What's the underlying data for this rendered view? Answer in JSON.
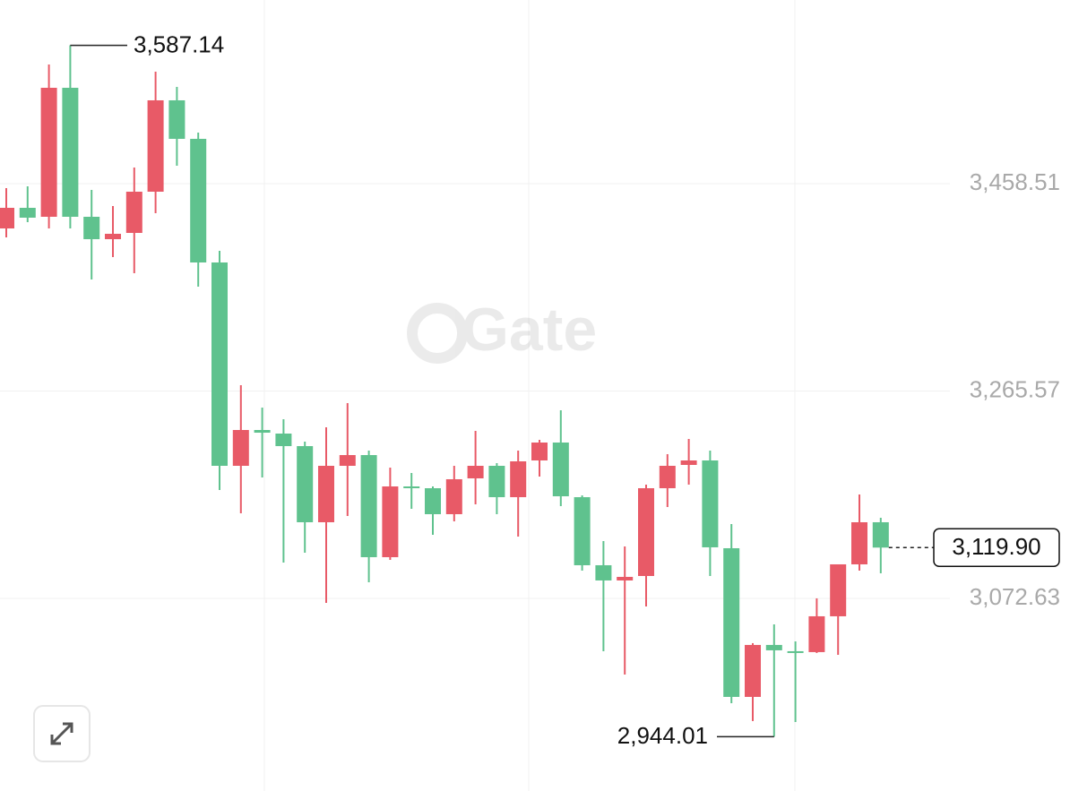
{
  "chart_data": {
    "type": "candlestick",
    "watermark": "Gate",
    "up_color": "#e85a67",
    "down_color": "#5fc28e",
    "ylim": [
      2893.44,
      3629.36
    ],
    "yticks": [
      {
        "value": 3072.63,
        "label": "3,072.63"
      },
      {
        "value": 3265.57,
        "label": "3,265.57"
      },
      {
        "value": 3458.51,
        "label": "3,458.51"
      }
    ],
    "grid": true,
    "open": [
      3416.83,
      3436.0,
      3427.67,
      3547.68,
      3427.67,
      3406.84,
      3412.67,
      3451.01,
      3536.02,
      3500.18,
      3385.17,
      3195.98,
      3229.31,
      3225.98,
      3214.31,
      3143.48,
      3195.98,
      3205.98,
      3110.98,
      3176.81,
      3175.14,
      3150.98,
      3184.31,
      3195.98,
      3166.81,
      3200.98,
      3217.64,
      3166.81,
      3103.48,
      3089.32,
      3093.48,
      3175.14,
      3196.81,
      3200.98,
      3119.31,
      2980.99,
      3029.33,
      3023.49,
      3022.66,
      3055.99,
      3104.31,
      3143.48
    ],
    "high": [
      3454.34,
      3456.01,
      3569.35,
      3587.14,
      3452.67,
      3437.67,
      3473.51,
      3562.69,
      3548.52,
      3506.01,
      3396.0,
      3270.98,
      3250.15,
      3239.31,
      3218.48,
      3231.81,
      3254.31,
      3210.14,
      3194.31,
      3189.31,
      3176.81,
      3195.98,
      3228.47,
      3198.48,
      3210.14,
      3220.14,
      3247.65,
      3168.48,
      3125.98,
      3120.98,
      3178.48,
      3206.81,
      3220.98,
      3210.14,
      3141.81,
      3030.99,
      3048.49,
      3032.66,
      3072.65,
      3104.31,
      3169.31,
      3147.64
    ],
    "low": [
      3408.5,
      3422.67,
      3416.83,
      3416.83,
      3369.33,
      3390.17,
      3375.17,
      3431.0,
      3475.17,
      3362.66,
      3173.48,
      3151.81,
      3185.14,
      3105.98,
      3115.15,
      3068.49,
      3149.31,
      3087.65,
      3108.48,
      3155.98,
      3131.81,
      3144.31,
      3160.14,
      3150.98,
      3130.15,
      3185.98,
      3158.48,
      3098.48,
      3023.49,
      3001.83,
      3065.15,
      3157.64,
      3178.48,
      3093.48,
      2975.16,
      2958.49,
      2944.01,
      2957.65,
      3021.83,
      3020.16,
      3098.48,
      3095.98
    ],
    "close": [
      3436.0,
      3426.84,
      3547.68,
      3427.67,
      3406.84,
      3411.84,
      3451.01,
      3536.02,
      3500.18,
      3385.17,
      3195.98,
      3229.31,
      3226.81,
      3214.31,
      3143.48,
      3195.98,
      3205.98,
      3110.98,
      3176.81,
      3175.14,
      3150.98,
      3183.48,
      3195.98,
      3166.81,
      3200.14,
      3217.64,
      3167.64,
      3103.48,
      3089.32,
      3092.65,
      3175.14,
      3195.98,
      3200.98,
      3120.15,
      2980.99,
      3029.33,
      3024.33,
      3021.83,
      3055.99,
      3104.31,
      3143.48,
      3119.9
    ],
    "high_label": "3,587.14",
    "low_label": "2,944.01",
    "last_label": "3,119.90"
  }
}
